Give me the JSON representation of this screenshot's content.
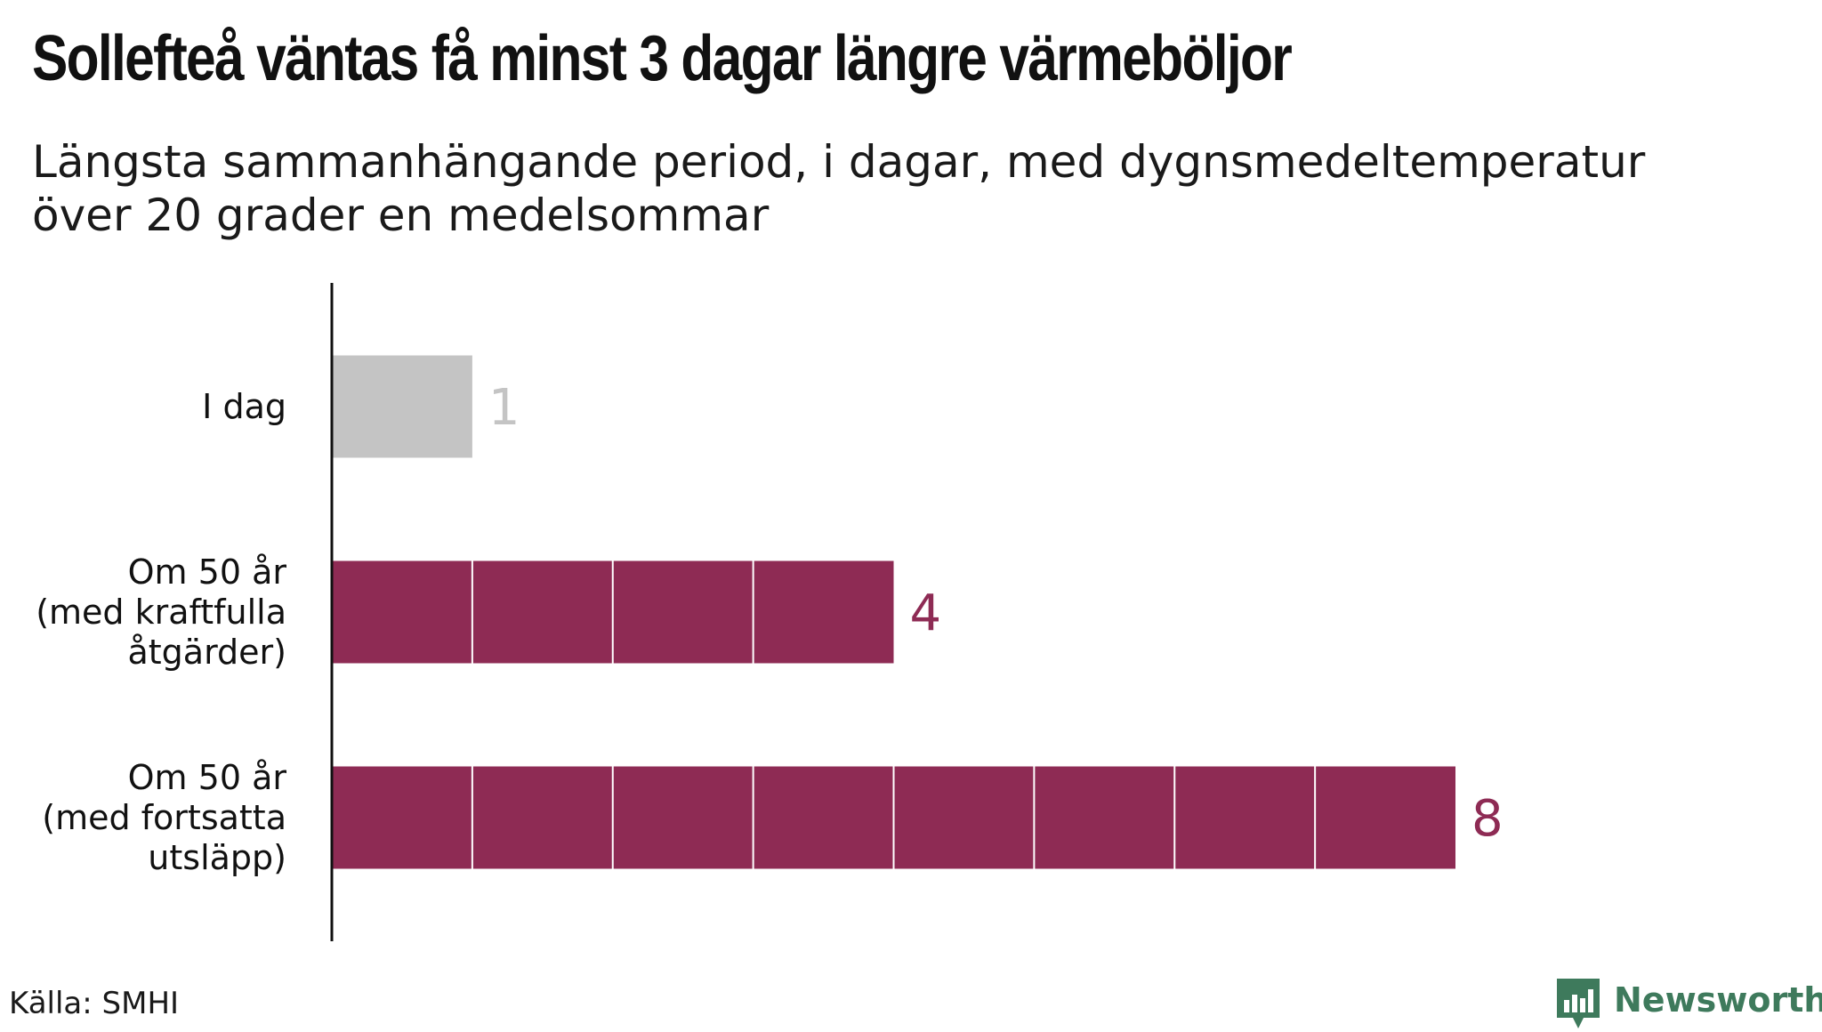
{
  "title": "Sollefteå väntas få minst 3 dagar längre värmeböljor",
  "subtitle": "Längsta sammanhängande period, i dagar, med dygnsmedeltemperatur över 20 grader en medelsommar",
  "source": "Källa: SMHI",
  "brand": {
    "name": "Newsworthy",
    "icon": "newsworthy-chart-icon",
    "color": "#3e7a5c"
  },
  "chart_data": {
    "type": "bar",
    "orientation": "horizontal",
    "categories": [
      [
        "I dag"
      ],
      [
        "Om 50 år",
        "(med kraftfulla",
        "åtgärder)"
      ],
      [
        "Om 50 år",
        "(med fortsatta",
        "utsläpp)"
      ]
    ],
    "values": [
      1,
      4,
      8
    ],
    "value_labels": [
      "1",
      "4",
      "8"
    ],
    "bar_colors": [
      "#c4c4c4",
      "#8e2b54",
      "#8e2b54"
    ],
    "label_colors": [
      "#c4c4c4",
      "#8e2b54",
      "#8e2b54"
    ],
    "xlim": [
      0,
      8
    ],
    "segmented_per_unit": true,
    "grid": false
  }
}
